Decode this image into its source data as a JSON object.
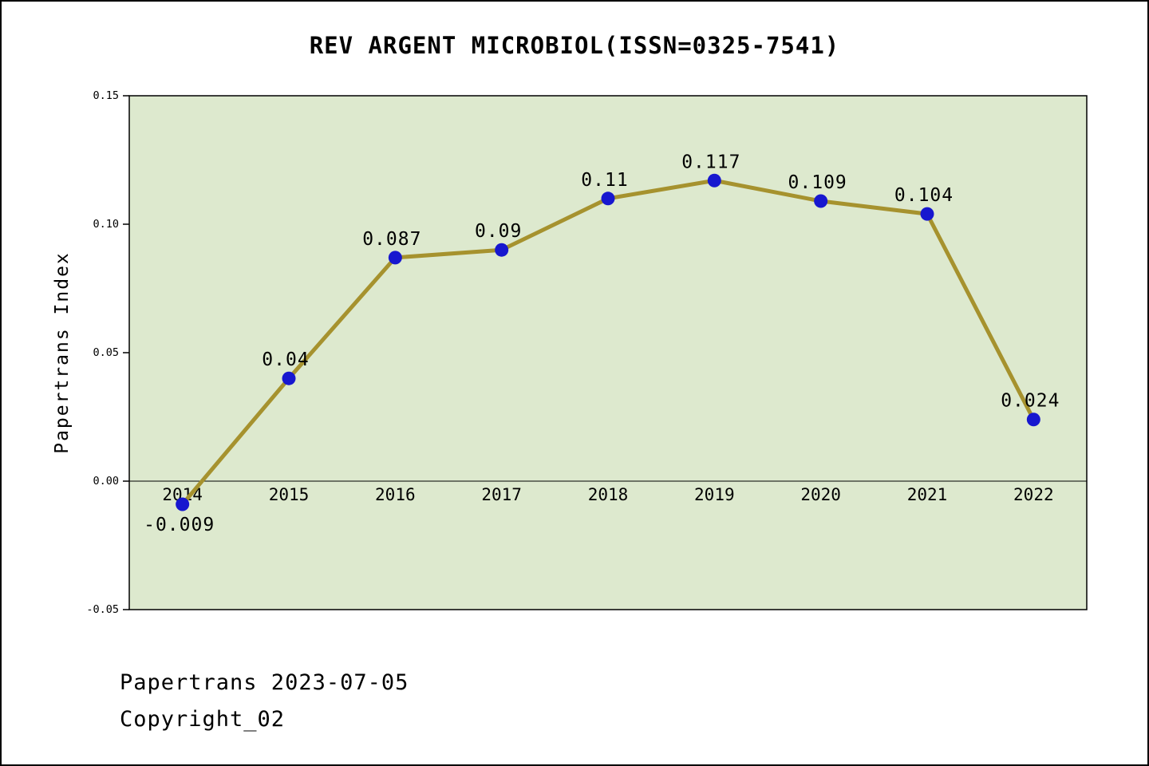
{
  "title": "REV ARGENT MICROBIOL(ISSN=0325-7541)",
  "y_axis_label": "Papertrans Index",
  "footer": {
    "line1": "Papertrans 2023-07-05",
    "line2": "Copyright_02"
  },
  "chart_data": {
    "type": "line",
    "title": "REV ARGENT MICROBIOL(ISSN=0325-7541)",
    "xlabel": "",
    "ylabel": "Papertrans Index",
    "categories": [
      "2014",
      "2015",
      "2016",
      "2017",
      "2018",
      "2019",
      "2020",
      "2021",
      "2022"
    ],
    "values": [
      -0.009,
      0.04,
      0.087,
      0.09,
      0.11,
      0.117,
      0.109,
      0.104,
      0.024
    ],
    "point_labels": [
      "-0.009",
      "0.04",
      "0.087",
      "0.09",
      "0.11",
      "0.117",
      "0.109",
      "0.104",
      "0.024"
    ],
    "ylim": [
      -0.05,
      0.15
    ],
    "yticks": [
      0.15,
      0.1,
      0.05,
      0.0,
      -0.05
    ],
    "ytick_labels": [
      "0.15",
      "0.10",
      "0.05",
      "0.00",
      "-0.05"
    ],
    "grid": false,
    "legend": false,
    "colors": {
      "line": "#a6922e",
      "marker": "#1717cf",
      "plot_background": "#dde9ce",
      "axis": "#000000",
      "text": "#000000"
    }
  }
}
